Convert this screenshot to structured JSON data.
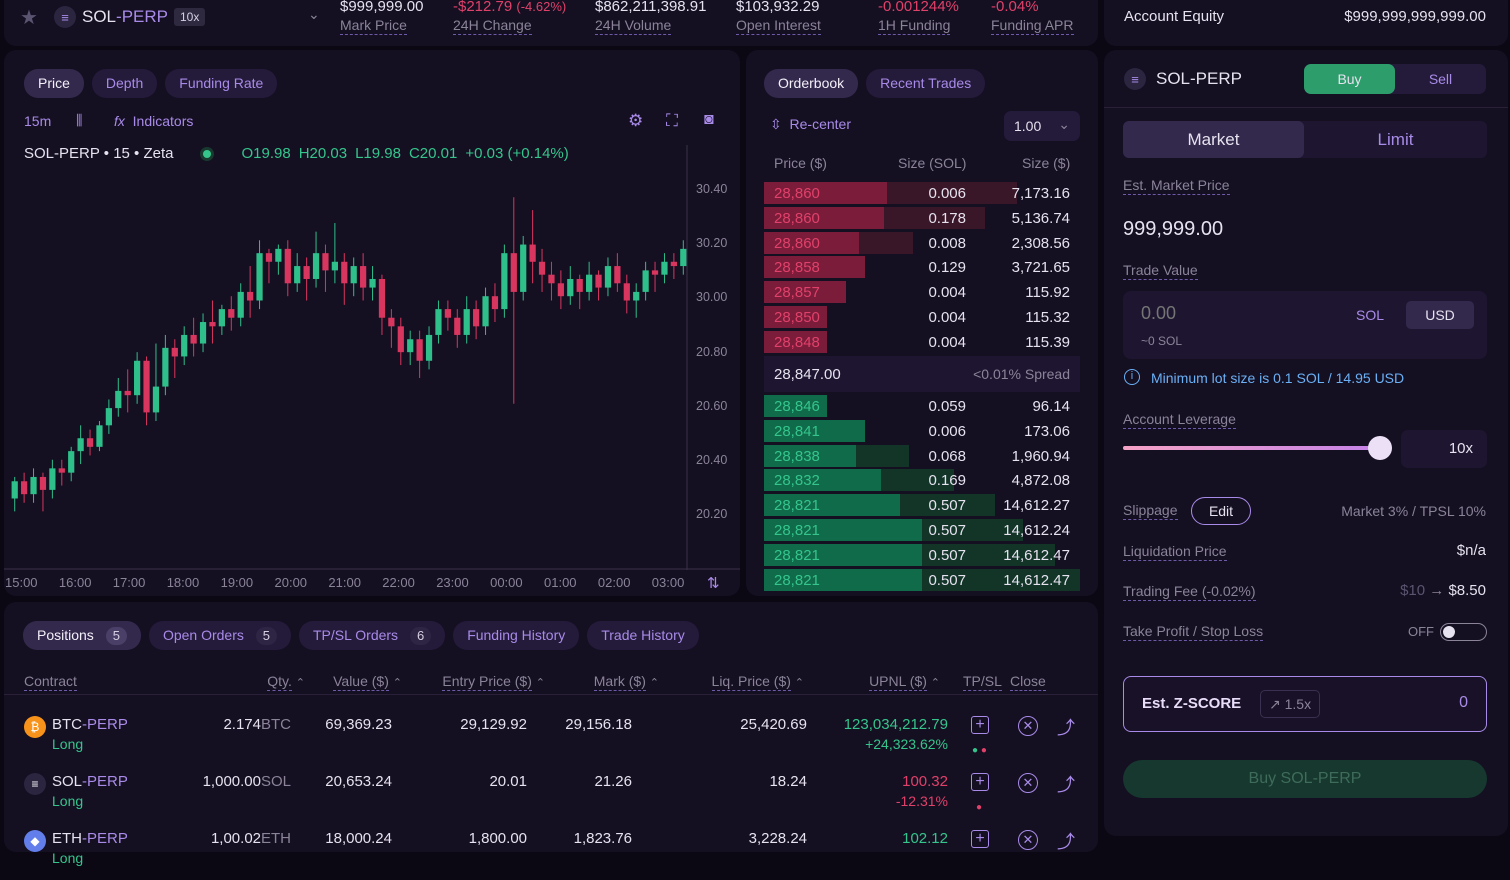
{
  "header": {
    "symbol": "SOL-PERP",
    "symbol_base": "SOL",
    "symbol_suffix": "-PERP",
    "leverage_badge": "10x",
    "stats": [
      {
        "value": "$999,999.00",
        "label": "Mark Price",
        "tone": "white"
      },
      {
        "value": "-$212.79",
        "value2": "(-4.62%)",
        "label": "24H Change",
        "tone": "red"
      },
      {
        "value": "$862,211,398.91",
        "label": "24H Volume",
        "tone": "white"
      },
      {
        "value": "$103,932.29",
        "label": "Open Interest",
        "tone": "white"
      },
      {
        "value": "-0.001244%",
        "label": "1H Funding",
        "tone": "red"
      },
      {
        "value": "-0.04%",
        "label": "Funding APR",
        "tone": "red"
      }
    ]
  },
  "account": {
    "label": "Account Equity",
    "value": "$999,999,999,999.00"
  },
  "chart": {
    "tabs": [
      "Price",
      "Depth",
      "Funding Rate"
    ],
    "interval": "15m",
    "indicators_label": "Indicators",
    "legend": {
      "symbol": "SOL-PERP",
      "interval": "15",
      "source": "Zeta",
      "o": "O19.98",
      "h": "H20.03",
      "l": "L19.98",
      "c": "C20.01",
      "chg": "+0.03 (+0.14%)"
    },
    "y_ticks": [
      "30.40",
      "30.20",
      "30.00",
      "20.80",
      "20.60",
      "20.40",
      "20.20"
    ],
    "x_ticks": [
      "15:00",
      "16:00",
      "17:00",
      "18:00",
      "19:00",
      "20:00",
      "21:00",
      "22:00",
      "23:00",
      "00:00",
      "01:00",
      "02:00",
      "03:00"
    ]
  },
  "chart_data": {
    "type": "candlestick",
    "colors": {
      "up": "#2fbf8a",
      "down": "#d8365f"
    },
    "candles": [
      [
        0.38,
        0.42,
        0.35,
        0.43
      ],
      [
        0.42,
        0.39,
        0.37,
        0.44
      ],
      [
        0.39,
        0.43,
        0.37,
        0.45
      ],
      [
        0.43,
        0.4,
        0.35,
        0.44
      ],
      [
        0.4,
        0.45,
        0.38,
        0.47
      ],
      [
        0.45,
        0.44,
        0.41,
        0.47
      ],
      [
        0.44,
        0.49,
        0.42,
        0.5
      ],
      [
        0.49,
        0.52,
        0.46,
        0.55
      ],
      [
        0.52,
        0.5,
        0.48,
        0.54
      ],
      [
        0.5,
        0.55,
        0.49,
        0.56
      ],
      [
        0.55,
        0.59,
        0.53,
        0.61
      ],
      [
        0.59,
        0.63,
        0.57,
        0.66
      ],
      [
        0.63,
        0.62,
        0.58,
        0.68
      ],
      [
        0.62,
        0.7,
        0.6,
        0.72
      ],
      [
        0.7,
        0.58,
        0.55,
        0.71
      ],
      [
        0.58,
        0.64,
        0.56,
        0.74
      ],
      [
        0.64,
        0.73,
        0.62,
        0.76
      ],
      [
        0.73,
        0.71,
        0.66,
        0.75
      ],
      [
        0.71,
        0.76,
        0.69,
        0.78
      ],
      [
        0.76,
        0.74,
        0.71,
        0.8
      ],
      [
        0.74,
        0.79,
        0.72,
        0.81
      ],
      [
        0.79,
        0.78,
        0.74,
        0.84
      ],
      [
        0.78,
        0.82,
        0.76,
        0.83
      ],
      [
        0.82,
        0.8,
        0.77,
        0.85
      ],
      [
        0.8,
        0.86,
        0.78,
        0.88
      ],
      [
        0.86,
        0.84,
        0.8,
        0.92
      ],
      [
        0.84,
        0.95,
        0.82,
        0.98
      ],
      [
        0.95,
        0.93,
        0.88,
        0.96
      ],
      [
        0.93,
        0.96,
        0.9,
        0.97
      ],
      [
        0.96,
        0.88,
        0.85,
        0.98
      ],
      [
        0.88,
        0.92,
        0.86,
        0.95
      ],
      [
        0.92,
        0.89,
        0.84,
        0.94
      ],
      [
        0.89,
        0.95,
        0.87,
        1.0
      ],
      [
        0.95,
        0.91,
        0.86,
        0.97
      ],
      [
        0.91,
        0.93,
        0.88,
        1.02
      ],
      [
        0.93,
        0.88,
        0.83,
        0.95
      ],
      [
        0.88,
        0.92,
        0.85,
        0.94
      ],
      [
        0.92,
        0.87,
        0.84,
        0.95
      ],
      [
        0.87,
        0.89,
        0.84,
        0.92
      ],
      [
        0.89,
        0.8,
        0.76,
        0.9
      ],
      [
        0.8,
        0.78,
        0.73,
        0.82
      ],
      [
        0.78,
        0.72,
        0.69,
        0.8
      ],
      [
        0.72,
        0.75,
        0.69,
        0.77
      ],
      [
        0.75,
        0.7,
        0.66,
        0.77
      ],
      [
        0.7,
        0.76,
        0.68,
        0.78
      ],
      [
        0.76,
        0.82,
        0.74,
        0.84
      ],
      [
        0.82,
        0.8,
        0.77,
        0.84
      ],
      [
        0.8,
        0.76,
        0.73,
        0.82
      ],
      [
        0.76,
        0.82,
        0.74,
        0.85
      ],
      [
        0.82,
        0.78,
        0.75,
        0.84
      ],
      [
        0.78,
        0.85,
        0.76,
        0.87
      ],
      [
        0.85,
        0.82,
        0.79,
        0.88
      ],
      [
        0.82,
        0.95,
        0.8,
        0.97
      ],
      [
        0.95,
        0.86,
        0.6,
        1.08
      ],
      [
        0.86,
        0.97,
        0.84,
        0.99
      ],
      [
        0.97,
        0.93,
        0.88,
        1.05
      ],
      [
        0.93,
        0.9,
        0.86,
        0.96
      ],
      [
        0.9,
        0.88,
        0.84,
        0.93
      ],
      [
        0.88,
        0.85,
        0.82,
        0.91
      ],
      [
        0.85,
        0.89,
        0.83,
        0.92
      ],
      [
        0.89,
        0.86,
        0.82,
        0.9
      ],
      [
        0.86,
        0.9,
        0.84,
        0.93
      ],
      [
        0.9,
        0.87,
        0.84,
        0.91
      ],
      [
        0.87,
        0.92,
        0.85,
        0.94
      ],
      [
        0.92,
        0.88,
        0.86,
        0.95
      ],
      [
        0.88,
        0.84,
        0.81,
        0.9
      ],
      [
        0.84,
        0.86,
        0.8,
        0.88
      ],
      [
        0.86,
        0.91,
        0.84,
        0.93
      ],
      [
        0.91,
        0.9,
        0.86,
        0.93
      ],
      [
        0.9,
        0.93,
        0.88,
        0.95
      ],
      [
        0.93,
        0.92,
        0.89,
        0.95
      ],
      [
        0.92,
        0.96,
        0.9,
        0.98
      ]
    ]
  },
  "orderbook": {
    "tabs": [
      "Orderbook",
      "Recent Trades"
    ],
    "recenter": "Re-center",
    "tick": "1.00",
    "headers": [
      "Price ($)",
      "Size (SOL)",
      "Size ($)"
    ],
    "asks": [
      {
        "price": "28,860",
        "size": "0.006",
        "usd": "7,173.16",
        "depth": 0.39,
        "cum": 0.8
      },
      {
        "price": "28,860",
        "size": "0.178",
        "usd": "5,136.74",
        "depth": 0.38,
        "cum": 0.7
      },
      {
        "price": "28,860",
        "size": "0.008",
        "usd": "2,308.56",
        "depth": 0.3,
        "cum": 0.47
      },
      {
        "price": "28,858",
        "size": "0.129",
        "usd": "3,721.65",
        "depth": 0.32,
        "cum": 0.32
      },
      {
        "price": "28,857",
        "size": "0.004",
        "usd": "115.92",
        "depth": 0.26,
        "cum": 0.26
      },
      {
        "price": "28,850",
        "size": "0.004",
        "usd": "115.32",
        "depth": 0.2,
        "cum": 0.2
      },
      {
        "price": "28,848",
        "size": "0.004",
        "usd": "115.39",
        "depth": 0.2,
        "cum": 0.2
      }
    ],
    "mid_price": "28,847.00",
    "spread": "<0.01% Spread",
    "bids": [
      {
        "price": "28,846",
        "size": "0.059",
        "usd": "96.14",
        "depth": 0.2,
        "cum": 0.2
      },
      {
        "price": "28,841",
        "size": "0.006",
        "usd": "173.06",
        "depth": 0.32,
        "cum": 0.32
      },
      {
        "price": "28,838",
        "size": "0.068",
        "usd": "1,960.94",
        "depth": 0.29,
        "cum": 0.46
      },
      {
        "price": "28,832",
        "size": "0.169",
        "usd": "4,872.08",
        "depth": 0.37,
        "cum": 0.6
      },
      {
        "price": "28,821",
        "size": "0.507",
        "usd": "14,612.27",
        "depth": 0.43,
        "cum": 0.73
      },
      {
        "price": "28,821",
        "size": "0.507",
        "usd": "14,612.24",
        "depth": 0.5,
        "cum": 0.82
      },
      {
        "price": "28,821",
        "size": "0.507",
        "usd": "14,612.47",
        "depth": 0.5,
        "cum": 0.92
      },
      {
        "price": "28,821",
        "size": "0.507",
        "usd": "14,612.47",
        "depth": 0.5,
        "cum": 1.0
      }
    ]
  },
  "positions": {
    "tabs": [
      {
        "label": "Positions",
        "count": "5"
      },
      {
        "label": "Open Orders",
        "count": "5"
      },
      {
        "label": "TP/SL Orders",
        "count": "6"
      },
      {
        "label": "Funding History",
        "count": ""
      },
      {
        "label": "Trade History",
        "count": ""
      }
    ],
    "headers": [
      "Contract",
      "Qty.",
      "Value ($)",
      "Entry Price ($)",
      "Mark ($)",
      "Liq. Price ($)",
      "UPNL ($)",
      "TP/SL",
      "Close"
    ],
    "rows": [
      {
        "base": "BTC",
        "suffix": "-PERP",
        "side": "Long",
        "qty": "2.174",
        "unit": "BTC",
        "value": "69,369.23",
        "entry": "29,129.92",
        "mark": "29,156.18",
        "liq": "25,420.69",
        "upnl": "123,034,212.79",
        "upnl_pct": "+24,323.62%",
        "tone": "green",
        "logo": "#f7931a",
        "glyph": "₿"
      },
      {
        "base": "SOL",
        "suffix": "-PERP",
        "side": "Long",
        "qty": "1,000.00",
        "unit": "SOL",
        "value": "20,653.24",
        "entry": "20.01",
        "mark": "21.26",
        "liq": "18.24",
        "upnl": "100.32",
        "upnl_pct": "-12.31%",
        "tone": "red",
        "logo": "#2b2540",
        "glyph": "≡"
      },
      {
        "base": "ETH",
        "suffix": "-PERP",
        "side": "Long",
        "qty": "1,00.02",
        "unit": "ETH",
        "value": "18,000.24",
        "entry": "1,800.00",
        "mark": "1,823.76",
        "liq": "3,228.24",
        "upnl": "102.12",
        "upnl_pct": "",
        "tone": "green",
        "logo": "#627eea",
        "glyph": "◆"
      }
    ]
  },
  "form": {
    "symbol": "SOL-PERP",
    "buy": "Buy",
    "sell": "Sell",
    "market": "Market",
    "limit": "Limit",
    "est_market_price_label": "Est. Market Price",
    "est_market_price": "999,999.00",
    "trade_value_label": "Trade Value",
    "trade_value_placeholder": "0.00",
    "unit_sol": "SOL",
    "unit_usd": "USD",
    "approx": "~0 SOL",
    "min_lot": "Minimum lot size is 0.1 SOL / 14.95 USD",
    "leverage_label": "Account Leverage",
    "leverage_value": "10x",
    "leverage_fraction": 0.98,
    "slippage_label": "Slippage",
    "edit": "Edit",
    "slippage_value_a": "Market 3%",
    "slippage_sep": " / ",
    "slippage_value_b": "TPSL 10%",
    "liq_label": "Liquidation Price",
    "liq_value": "$n/a",
    "fee_label": "Trading Fee (-0.02%)",
    "fee_old": "$10",
    "fee_new": "$8.50",
    "tpsl_label": "Take Profit / Stop Loss",
    "tpsl_state": "OFF",
    "zscore_label": "Est. Z-SCORE",
    "zscore_mult": "1.5x",
    "zscore_value": "0",
    "submit": "Buy SOL-PERP"
  }
}
